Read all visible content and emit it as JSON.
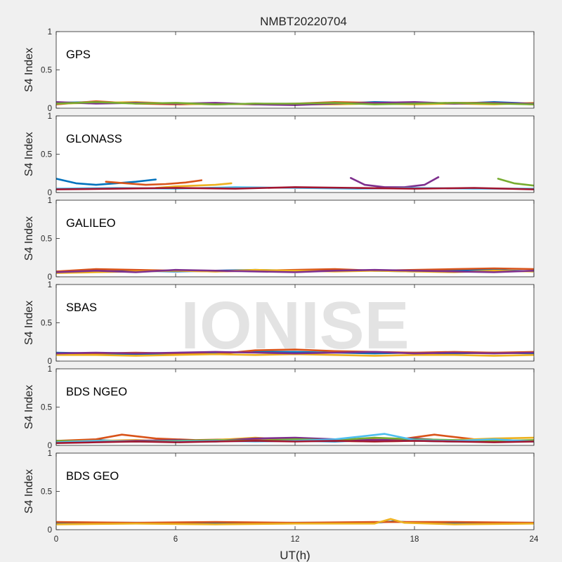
{
  "chart_data": {
    "type": "line",
    "title": "NMBT20220704",
    "xlabel": "UT(h)",
    "ylabel": "S4 Index",
    "xlim": [
      0,
      24
    ],
    "ylim": [
      0,
      1
    ],
    "xticks": [
      "0",
      "6",
      "12",
      "18",
      "24"
    ],
    "yticks": [
      "0",
      "0.5",
      "1"
    ],
    "grid": false,
    "watermark": "IONISE",
    "colors": [
      "#0072BD",
      "#D95319",
      "#EDB120",
      "#7E2F8E",
      "#77AC30",
      "#4DBEEE",
      "#A2142F"
    ],
    "panels": [
      {
        "label": "GPS",
        "series": [
          {
            "x": [
              0,
              2,
              4,
              6,
              8,
              10,
              12,
              14,
              16,
              18,
              20,
              22,
              24
            ],
            "y": [
              0.07,
              0.08,
              0.07,
              0.06,
              0.05,
              0.06,
              0.05,
              0.06,
              0.08,
              0.07,
              0.06,
              0.08,
              0.06
            ]
          },
          {
            "x": [
              0,
              2,
              4,
              6,
              8,
              10,
              12,
              14,
              16,
              18,
              20,
              22,
              24
            ],
            "y": [
              0.05,
              0.09,
              0.06,
              0.05,
              0.06,
              0.05,
              0.06,
              0.08,
              0.07,
              0.06,
              0.07,
              0.07,
              0.05
            ]
          },
          {
            "x": [
              0,
              2,
              4,
              6,
              8,
              10,
              12,
              14,
              16,
              18,
              20,
              22,
              24
            ],
            "y": [
              0.06,
              0.07,
              0.08,
              0.06,
              0.05,
              0.06,
              0.05,
              0.05,
              0.06,
              0.05,
              0.06,
              0.05,
              0.07
            ]
          },
          {
            "x": [
              0,
              2,
              4,
              6,
              8,
              10,
              12,
              14,
              16,
              18,
              20,
              22,
              24
            ],
            "y": [
              0.08,
              0.06,
              0.07,
              0.06,
              0.07,
              0.05,
              0.04,
              0.06,
              0.07,
              0.08,
              0.06,
              0.07,
              0.06
            ]
          },
          {
            "x": [
              0,
              2,
              4,
              6,
              8,
              10,
              12,
              14,
              16,
              18,
              20,
              22,
              24
            ],
            "y": [
              0.06,
              0.08,
              0.06,
              0.07,
              0.05,
              0.06,
              0.06,
              0.07,
              0.05,
              0.06,
              0.07,
              0.06,
              0.05
            ]
          }
        ]
      },
      {
        "label": "GLONASS",
        "series": [
          {
            "x": [
              0,
              1,
              2,
              3,
              4,
              5
            ],
            "y": [
              0.18,
              0.12,
              0.1,
              0.12,
              0.14,
              0.17
            ]
          },
          {
            "x": [
              2.5,
              3.5,
              4.5,
              5.5,
              6.5,
              7.3
            ],
            "y": [
              0.14,
              0.12,
              0.1,
              0.11,
              0.13,
              0.16
            ]
          },
          {
            "x": [
              5,
              6,
              7,
              8,
              8.8
            ],
            "y": [
              0.06,
              0.08,
              0.09,
              0.1,
              0.12
            ]
          },
          {
            "x": [
              14.8,
              15.5,
              16.5,
              17.5,
              18.5,
              19.2
            ],
            "y": [
              0.19,
              0.1,
              0.07,
              0.07,
              0.1,
              0.2
            ]
          },
          {
            "x": [
              22.2,
              23,
              24
            ],
            "y": [
              0.18,
              0.12,
              0.09
            ]
          },
          {
            "x": [
              0,
              3,
              6,
              9,
              12,
              15,
              18,
              21,
              24
            ],
            "y": [
              0.05,
              0.06,
              0.05,
              0.07,
              0.06,
              0.05,
              0.06,
              0.05,
              0.05
            ]
          },
          {
            "x": [
              0,
              3,
              6,
              9,
              12,
              15,
              18,
              21,
              24
            ],
            "y": [
              0.04,
              0.05,
              0.06,
              0.05,
              0.07,
              0.06,
              0.05,
              0.06,
              0.04
            ]
          }
        ]
      },
      {
        "label": "GALILEO",
        "series": [
          {
            "x": [
              0,
              2,
              4,
              6,
              8,
              10,
              12,
              14,
              16,
              18,
              20,
              22,
              24
            ],
            "y": [
              0.06,
              0.07,
              0.08,
              0.07,
              0.08,
              0.09,
              0.08,
              0.09,
              0.08,
              0.07,
              0.08,
              0.09,
              0.07
            ]
          },
          {
            "x": [
              0,
              2,
              4,
              6,
              8,
              10,
              12,
              14,
              16,
              18,
              20,
              22,
              24
            ],
            "y": [
              0.07,
              0.1,
              0.09,
              0.08,
              0.07,
              0.08,
              0.09,
              0.1,
              0.08,
              0.09,
              0.1,
              0.11,
              0.1
            ]
          },
          {
            "x": [
              0,
              2,
              4,
              6,
              8,
              10,
              12,
              14,
              16,
              18,
              20,
              22,
              24
            ],
            "y": [
              0.05,
              0.06,
              0.07,
              0.08,
              0.07,
              0.09,
              0.08,
              0.07,
              0.08,
              0.07,
              0.06,
              0.08,
              0.07
            ]
          },
          {
            "x": [
              0,
              2,
              4,
              6,
              8,
              10,
              12,
              14,
              16,
              18,
              20,
              22,
              24
            ],
            "y": [
              0.06,
              0.08,
              0.06,
              0.09,
              0.08,
              0.07,
              0.06,
              0.08,
              0.09,
              0.08,
              0.07,
              0.06,
              0.08
            ]
          }
        ]
      },
      {
        "label": "SBAS",
        "series": [
          {
            "x": [
              0,
              2,
              4,
              6,
              8,
              10,
              12,
              14,
              16,
              18,
              20,
              22,
              24
            ],
            "y": [
              0.11,
              0.1,
              0.09,
              0.1,
              0.11,
              0.12,
              0.12,
              0.11,
              0.1,
              0.11,
              0.1,
              0.11,
              0.1
            ]
          },
          {
            "x": [
              0,
              2,
              4,
              6,
              8,
              10,
              12,
              14,
              16,
              18,
              20,
              22,
              24
            ],
            "y": [
              0.09,
              0.1,
              0.11,
              0.1,
              0.09,
              0.14,
              0.15,
              0.13,
              0.12,
              0.11,
              0.12,
              0.11,
              0.12
            ]
          },
          {
            "x": [
              0,
              2,
              4,
              6,
              8,
              10,
              12,
              14,
              16,
              18,
              20,
              22,
              24
            ],
            "y": [
              0.08,
              0.08,
              0.07,
              0.08,
              0.09,
              0.08,
              0.09,
              0.08,
              0.07,
              0.08,
              0.08,
              0.07,
              0.08
            ]
          },
          {
            "x": [
              0,
              2,
              4,
              6,
              8,
              10,
              12,
              14,
              16,
              18,
              20,
              22,
              24
            ],
            "y": [
              0.1,
              0.11,
              0.1,
              0.11,
              0.12,
              0.11,
              0.1,
              0.11,
              0.12,
              0.1,
              0.11,
              0.1,
              0.11
            ]
          }
        ]
      },
      {
        "label": "BDS NGEO",
        "series": [
          {
            "x": [
              0,
              2,
              4,
              6,
              8,
              10,
              12,
              14,
              16,
              18,
              20,
              22,
              24
            ],
            "y": [
              0.04,
              0.07,
              0.05,
              0.06,
              0.05,
              0.07,
              0.06,
              0.05,
              0.07,
              0.06,
              0.05,
              0.06,
              0.05
            ]
          },
          {
            "x": [
              0,
              2,
              3.3,
              5,
              7,
              9,
              11,
              13,
              15,
              17,
              19,
              21,
              24
            ],
            "y": [
              0.06,
              0.08,
              0.14,
              0.09,
              0.07,
              0.08,
              0.06,
              0.07,
              0.08,
              0.07,
              0.14,
              0.08,
              0.06
            ]
          },
          {
            "x": [
              0,
              2,
              4,
              6,
              8,
              10,
              12,
              14,
              16,
              18,
              20,
              22,
              24
            ],
            "y": [
              0.05,
              0.06,
              0.07,
              0.05,
              0.07,
              0.1,
              0.07,
              0.06,
              0.05,
              0.06,
              0.07,
              0.09,
              0.1
            ]
          },
          {
            "x": [
              0,
              2,
              4,
              6,
              8,
              10,
              12,
              14,
              16,
              18,
              20,
              22,
              24
            ],
            "y": [
              0.05,
              0.05,
              0.06,
              0.07,
              0.06,
              0.09,
              0.1,
              0.08,
              0.07,
              0.09,
              0.06,
              0.05,
              0.06
            ]
          },
          {
            "x": [
              0,
              2,
              4,
              6,
              8,
              10,
              12,
              14,
              16,
              18,
              20,
              22,
              24
            ],
            "y": [
              0.06,
              0.05,
              0.05,
              0.06,
              0.07,
              0.06,
              0.08,
              0.07,
              0.1,
              0.08,
              0.07,
              0.06,
              0.07
            ]
          },
          {
            "x": [
              0,
              2,
              4,
              6,
              8,
              10,
              12,
              14,
              16.5,
              18,
              20,
              22,
              24
            ],
            "y": [
              0.04,
              0.06,
              0.05,
              0.05,
              0.06,
              0.05,
              0.06,
              0.08,
              0.15,
              0.07,
              0.06,
              0.08,
              0.05
            ]
          },
          {
            "x": [
              0,
              2,
              4,
              6,
              8,
              10,
              12,
              14,
              16,
              18,
              20,
              22,
              24
            ],
            "y": [
              0.03,
              0.04,
              0.05,
              0.04,
              0.05,
              0.06,
              0.05,
              0.06,
              0.05,
              0.06,
              0.05,
              0.04,
              0.05
            ]
          }
        ]
      },
      {
        "label": "BDS GEO",
        "series": [
          {
            "x": [
              0,
              4,
              8,
              12,
              16,
              17,
              18,
              22,
              24
            ],
            "y": [
              0.09,
              0.09,
              0.08,
              0.09,
              0.09,
              0.11,
              0.09,
              0.09,
              0.09
            ]
          },
          {
            "x": [
              0,
              4,
              8,
              12,
              16,
              20,
              24
            ],
            "y": [
              0.1,
              0.09,
              0.1,
              0.09,
              0.1,
              0.1,
              0.09
            ]
          },
          {
            "x": [
              0,
              4,
              8,
              12,
              16,
              16.8,
              17.5,
              20,
              24
            ],
            "y": [
              0.07,
              0.08,
              0.07,
              0.08,
              0.08,
              0.14,
              0.09,
              0.07,
              0.08
            ]
          }
        ]
      }
    ]
  }
}
